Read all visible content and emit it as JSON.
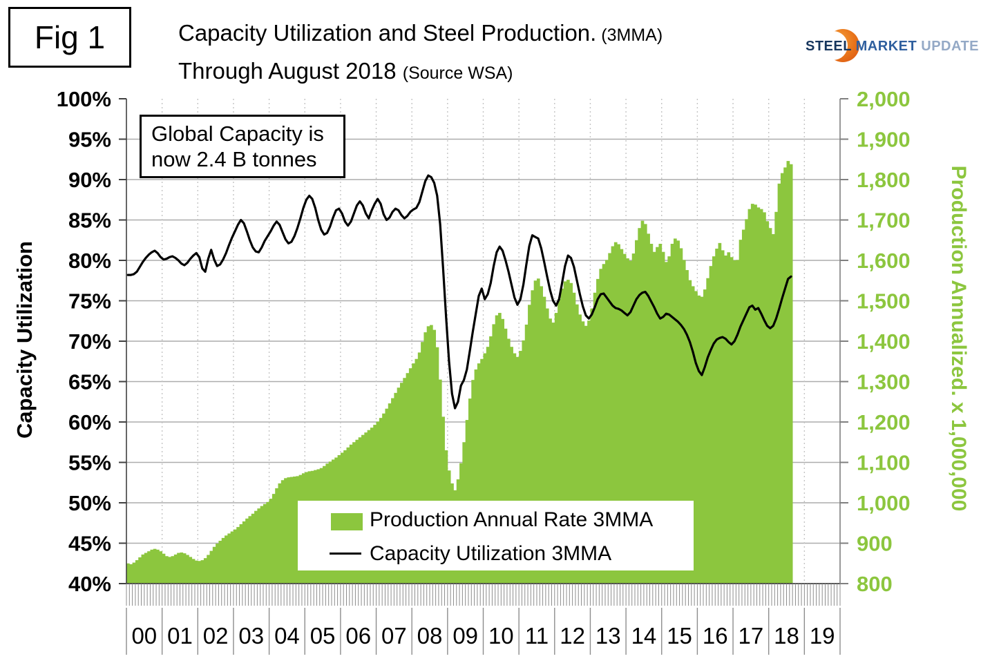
{
  "header": {
    "fig_label": "Fig 1",
    "title_line1": "Capacity Utilization and Steel Production.",
    "title_line1_suffix": " (3MMA)",
    "title_line2": "Through August 2018 ",
    "title_line2_suffix": "(Source WSA)"
  },
  "logo": {
    "word1": "STEEL",
    "word2": " MARKET",
    "word3": " UPDATE"
  },
  "annotation": {
    "line1": "Global Capacity is",
    "line2": "now 2.4 B tonnes"
  },
  "legend": {
    "bar_label": "Production Annual Rate 3MMA",
    "line_label": "Capacity Utilization 3MMA"
  },
  "axes": {
    "left_title": "Capacity Utilization",
    "right_title": "Production Annualized. x 1,000,000",
    "left_ticks": [
      "100%",
      "95%",
      "90%",
      "85%",
      "80%",
      "75%",
      "70%",
      "65%",
      "60%",
      "55%",
      "50%",
      "45%",
      "40%"
    ],
    "right_ticks": [
      "2,000",
      "1,900",
      "1,800",
      "1,700",
      "1,600",
      "1,500",
      "1,400",
      "1,300",
      "1,200",
      "1,100",
      "1,000",
      "900",
      "800"
    ],
    "year_labels": [
      "00",
      "01",
      "02",
      "03",
      "04",
      "05",
      "06",
      "07",
      "08",
      "09",
      "10",
      "11",
      "12",
      "13",
      "14",
      "15",
      "16",
      "17",
      "18",
      "19"
    ]
  },
  "colors": {
    "green": "#8CC63E",
    "line": "#000000"
  },
  "chart_data": {
    "type": "combo",
    "title": "Capacity Utilization and Steel Production. (3MMA) Through August 2018 (Source WSA)",
    "x_start": "2000-01",
    "x_end": "2018-08",
    "x_axis_years_shown": [
      "00",
      "01",
      "02",
      "03",
      "04",
      "05",
      "06",
      "07",
      "08",
      "09",
      "10",
      "11",
      "12",
      "13",
      "14",
      "15",
      "16",
      "17",
      "18",
      "19"
    ],
    "left_axis": {
      "label": "Capacity Utilization",
      "min": 40,
      "max": 100,
      "unit": "%",
      "tick_step": 5
    },
    "right_axis": {
      "label": "Production Annualized. x 1,000,000",
      "min": 800,
      "max": 2000,
      "tick_step": 100
    },
    "grid": "horizontal solid gray, vertical dotted at year boundaries",
    "legend_position": "bottom-center inside plot",
    "series": [
      {
        "name": "Production Annual Rate 3MMA",
        "type": "bar",
        "axis": "right",
        "monthly_values": [
          850,
          848,
          852,
          858,
          865,
          872,
          876,
          880,
          884,
          886,
          884,
          880,
          874,
          868,
          866,
          868,
          872,
          876,
          877,
          875,
          871,
          866,
          861,
          857,
          856,
          858,
          863,
          871,
          881,
          891,
          899,
          906,
          913,
          919,
          924,
          929,
          934,
          940,
          947,
          954,
          961,
          967,
          973,
          980,
          986,
          992,
          997,
          1002,
          1010,
          1022,
          1036,
          1048,
          1056,
          1061,
          1063,
          1064,
          1065,
          1066,
          1069,
          1073,
          1076,
          1078,
          1079,
          1081,
          1083,
          1086,
          1091,
          1097,
          1102,
          1107,
          1112,
          1118,
          1124,
          1130,
          1137,
          1144,
          1150,
          1156,
          1162,
          1168,
          1174,
          1180,
          1186,
          1193,
          1201,
          1210,
          1221,
          1233,
          1246,
          1259,
          1272,
          1285,
          1297,
          1309,
          1321,
          1333,
          1345,
          1356,
          1372,
          1398,
          1422,
          1437,
          1440,
          1428,
          1385,
          1305,
          1213,
          1130,
          1080,
          1048,
          1031,
          1058,
          1098,
          1150,
          1205,
          1258,
          1304,
          1330,
          1345,
          1356,
          1370,
          1386,
          1412,
          1442,
          1464,
          1470,
          1455,
          1431,
          1406,
          1386,
          1370,
          1361,
          1376,
          1402,
          1441,
          1490,
          1526,
          1550,
          1555,
          1536,
          1510,
          1481,
          1456,
          1446,
          1470,
          1504,
          1530,
          1548,
          1552,
          1544,
          1520,
          1491,
          1466,
          1449,
          1438,
          1451,
          1481,
          1520,
          1554,
          1579,
          1591,
          1601,
          1618,
          1635,
          1645,
          1640,
          1628,
          1616,
          1605,
          1599,
          1617,
          1650,
          1680,
          1698,
          1690,
          1666,
          1641,
          1621,
          1633,
          1641,
          1621,
          1596,
          1610,
          1641,
          1654,
          1649,
          1630,
          1601,
          1576,
          1551,
          1536,
          1524,
          1513,
          1510,
          1528,
          1556,
          1586,
          1610,
          1629,
          1643,
          1625,
          1612,
          1620,
          1608,
          1600,
          1601,
          1651,
          1676,
          1702,
          1727,
          1740,
          1738,
          1731,
          1727,
          1719,
          1697,
          1680,
          1665,
          1720,
          1790,
          1816,
          1830,
          1846,
          1838
        ]
      },
      {
        "name": "Capacity Utilization 3MMA",
        "type": "line",
        "axis": "left",
        "monthly_values": [
          78.2,
          78.2,
          78.3,
          78.6,
          79.2,
          79.8,
          80.3,
          80.7,
          81.0,
          81.2,
          80.9,
          80.4,
          80.1,
          80.2,
          80.4,
          80.5,
          80.3,
          80.0,
          79.6,
          79.4,
          79.7,
          80.2,
          80.6,
          80.9,
          80.4,
          79.0,
          78.6,
          80.2,
          81.3,
          80.1,
          79.3,
          79.5,
          80.1,
          80.9,
          81.9,
          82.8,
          83.6,
          84.4,
          85.0,
          84.6,
          83.6,
          82.5,
          81.6,
          81.1,
          81.0,
          81.6,
          82.4,
          83.0,
          83.6,
          84.3,
          84.8,
          84.4,
          83.5,
          82.6,
          82.1,
          82.3,
          83.0,
          84.0,
          85.2,
          86.5,
          87.5,
          88.0,
          87.6,
          86.5,
          85.0,
          83.8,
          83.2,
          83.4,
          84.2,
          85.3,
          86.2,
          86.4,
          85.8,
          84.8,
          84.3,
          84.8,
          85.8,
          86.8,
          87.3,
          86.8,
          85.8,
          85.2,
          86.2,
          87.0,
          87.6,
          87.0,
          85.7,
          85.0,
          85.3,
          86.0,
          86.4,
          86.2,
          85.6,
          85.2,
          85.5,
          86.0,
          86.3,
          86.5,
          87.2,
          88.5,
          89.8,
          90.5,
          90.3,
          89.6,
          88.0,
          84.5,
          79.0,
          73.0,
          67.5,
          63.5,
          61.7,
          62.5,
          64.5,
          65.2,
          66.5,
          68.8,
          71.2,
          73.4,
          75.6,
          76.5,
          75.2,
          75.8,
          77.2,
          79.3,
          81.0,
          81.7,
          81.2,
          80.0,
          78.6,
          77.0,
          75.4,
          74.5,
          75.2,
          77.0,
          79.5,
          81.8,
          83.1,
          82.9,
          82.7,
          81.5,
          79.8,
          78.0,
          76.3,
          75.0,
          74.4,
          75.2,
          77.2,
          79.3,
          80.6,
          80.3,
          79.2,
          77.5,
          75.8,
          74.3,
          73.2,
          72.8,
          73.3,
          74.2,
          75.2,
          75.8,
          75.9,
          75.4,
          74.9,
          74.4,
          74.1,
          74.0,
          73.8,
          73.5,
          73.2,
          73.6,
          74.4,
          75.2,
          75.7,
          76.0,
          76.1,
          75.6,
          74.9,
          74.2,
          73.4,
          72.8,
          73.0,
          73.4,
          73.3,
          73.0,
          72.7,
          72.4,
          72.0,
          71.5,
          70.8,
          69.9,
          68.7,
          67.3,
          66.3,
          65.8,
          66.8,
          68.0,
          68.9,
          69.7,
          70.2,
          70.4,
          70.5,
          70.3,
          69.9,
          69.6,
          70.0,
          70.8,
          71.8,
          72.6,
          73.4,
          74.2,
          74.4,
          73.9,
          74.1,
          73.4,
          72.6,
          71.9,
          71.6,
          71.9,
          72.8,
          74.0,
          75.3,
          76.5,
          77.7,
          78.0
        ]
      }
    ]
  }
}
